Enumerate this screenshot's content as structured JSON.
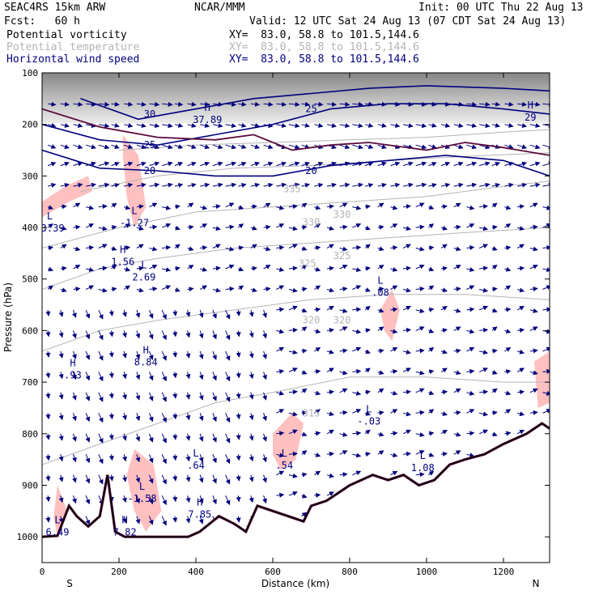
{
  "header": {
    "model": "SEAC4RS 15km ARW",
    "forecast": "Fcst:   60 h",
    "center": "NCAR/MMM",
    "init": "Init: 00 UTC Thu 22 Aug 13",
    "valid": "Valid: 12 UTC Sat 24 Aug 13 (07 CDT Sat 24 Aug 13)",
    "fields": [
      {
        "name": "Potential vorticity",
        "xy": "XY=  83.0, 58.8 to 101.5,144.6",
        "color": "#000000"
      },
      {
        "name": "Potential temperature",
        "xy": "XY=  83.0, 58.8 to 101.5,144.6",
        "color": "#b4b4b4"
      },
      {
        "name": "Horizontal wind speed",
        "xy": "XY=  83.0, 58.8 to 101.5,144.6",
        "color": "#00007f"
      }
    ]
  },
  "chart_data": {
    "type": "cross-section",
    "xlabel": "Distance (km)",
    "ylabel": "Pressure (hPa)",
    "xlim": [
      0,
      1320
    ],
    "ylim": [
      1050,
      100
    ],
    "x_ticks": [
      "0",
      "200",
      "400",
      "600",
      "800",
      "1000",
      "1200"
    ],
    "y_ticks": [
      "100",
      "200",
      "300",
      "400",
      "500",
      "600",
      "700",
      "800",
      "900",
      "1000"
    ],
    "endpoints": {
      "left": "S",
      "right": "N"
    },
    "colors": {
      "pv": "#5a0a3c",
      "theta": "#b4b4b4",
      "wind": "#00007f",
      "pv_fill": "#ffc0c0",
      "terrain": "#000000"
    },
    "theta_contours": [
      {
        "value": "315",
        "points": [
          [
            0,
            860
          ],
          [
            150,
            820
          ],
          [
            300,
            780
          ],
          [
            450,
            740
          ],
          [
            600,
            720
          ],
          [
            800,
            690
          ],
          [
            1000,
            690
          ],
          [
            1200,
            700
          ],
          [
            1320,
            700
          ]
        ]
      },
      {
        "value": "320",
        "points": [
          [
            0,
            640
          ],
          [
            150,
            600
          ],
          [
            300,
            580
          ],
          [
            500,
            560
          ],
          [
            700,
            540
          ],
          [
            900,
            530
          ],
          [
            1100,
            530
          ],
          [
            1320,
            540
          ]
        ]
      },
      {
        "value": "325",
        "points": [
          [
            0,
            520
          ],
          [
            150,
            480
          ],
          [
            300,
            460
          ],
          [
            500,
            440
          ],
          [
            700,
            430
          ],
          [
            900,
            420
          ],
          [
            1100,
            410
          ],
          [
            1320,
            400
          ]
        ]
      },
      {
        "value": "330",
        "points": [
          [
            0,
            440
          ],
          [
            200,
            400
          ],
          [
            400,
            370
          ],
          [
            600,
            360
          ],
          [
            800,
            350
          ],
          [
            1000,
            340
          ],
          [
            1200,
            320
          ],
          [
            1320,
            310
          ]
        ]
      },
      {
        "value": "335",
        "points": [
          [
            100,
            330
          ],
          [
            300,
            300
          ],
          [
            500,
            285
          ],
          [
            700,
            280
          ],
          [
            900,
            270
          ],
          [
            1100,
            262
          ],
          [
            1320,
            255
          ]
        ]
      },
      {
        "value": "340",
        "points": [
          [
            200,
            250
          ],
          [
            400,
            240
          ],
          [
            600,
            235
          ],
          [
            800,
            230
          ],
          [
            1000,
            225
          ],
          [
            1200,
            215
          ],
          [
            1320,
            210
          ]
        ]
      }
    ],
    "wind_isotachs": [
      {
        "value": "20",
        "points": [
          [
            0,
            250
          ],
          [
            150,
            285
          ],
          [
            300,
            290
          ],
          [
            450,
            300
          ],
          [
            600,
            300
          ],
          [
            750,
            280
          ],
          [
            900,
            270
          ],
          [
            1050,
            260
          ],
          [
            1200,
            270
          ],
          [
            1320,
            300
          ]
        ]
      },
      {
        "value": "25",
        "points": [
          [
            0,
            200
          ],
          [
            150,
            230
          ],
          [
            300,
            240
          ],
          [
            450,
            220
          ],
          [
            600,
            200
          ],
          [
            750,
            170
          ],
          [
            900,
            160
          ],
          [
            1050,
            160
          ],
          [
            1200,
            170
          ],
          [
            1320,
            180
          ]
        ]
      },
      {
        "value": "30",
        "points": [
          [
            100,
            150
          ],
          [
            250,
            190
          ],
          [
            400,
            170
          ],
          [
            550,
            150
          ],
          [
            700,
            140
          ],
          [
            850,
            130
          ],
          [
            1000,
            125
          ],
          [
            1200,
            130
          ],
          [
            1320,
            135
          ]
        ]
      }
    ],
    "pv_contour": {
      "points": [
        [
          0,
          170
        ],
        [
          150,
          205
        ],
        [
          300,
          225
        ],
        [
          450,
          230
        ],
        [
          550,
          220
        ],
        [
          650,
          250
        ],
        [
          750,
          240
        ],
        [
          850,
          235
        ],
        [
          1000,
          250
        ],
        [
          1100,
          235
        ],
        [
          1200,
          245
        ],
        [
          1320,
          260
        ]
      ]
    },
    "terrain_profile": [
      [
        0,
        1000
      ],
      [
        40,
        998
      ],
      [
        70,
        940
      ],
      [
        90,
        960
      ],
      [
        120,
        980
      ],
      [
        150,
        960
      ],
      [
        170,
        880
      ],
      [
        190,
        990
      ],
      [
        215,
        1000
      ],
      [
        380,
        1000
      ],
      [
        410,
        990
      ],
      [
        460,
        960
      ],
      [
        500,
        975
      ],
      [
        530,
        990
      ],
      [
        560,
        940
      ],
      [
        600,
        950
      ],
      [
        640,
        960
      ],
      [
        680,
        970
      ],
      [
        700,
        940
      ],
      [
        740,
        930
      ],
      [
        800,
        900
      ],
      [
        860,
        880
      ],
      [
        900,
        890
      ],
      [
        940,
        880
      ],
      [
        980,
        900
      ],
      [
        1020,
        890
      ],
      [
        1060,
        860
      ],
      [
        1100,
        850
      ],
      [
        1150,
        840
      ],
      [
        1200,
        820
      ],
      [
        1260,
        800
      ],
      [
        1300,
        780
      ],
      [
        1320,
        790
      ]
    ],
    "pv_fill_regions": [
      [
        [
          0,
          350
        ],
        [
          60,
          320
        ],
        [
          120,
          300
        ],
        [
          130,
          330
        ],
        [
          70,
          350
        ],
        [
          0,
          380
        ]
      ],
      [
        [
          210,
          220
        ],
        [
          250,
          260
        ],
        [
          270,
          360
        ],
        [
          240,
          400
        ],
        [
          220,
          340
        ],
        [
          210,
          260
        ]
      ],
      [
        [
          240,
          830
        ],
        [
          290,
          860
        ],
        [
          310,
          950
        ],
        [
          270,
          990
        ],
        [
          240,
          950
        ],
        [
          220,
          880
        ]
      ],
      [
        [
          40,
          900
        ],
        [
          70,
          960
        ],
        [
          70,
          1000
        ],
        [
          40,
          1000
        ],
        [
          30,
          960
        ]
      ],
      [
        [
          600,
          800
        ],
        [
          650,
          760
        ],
        [
          680,
          780
        ],
        [
          660,
          850
        ],
        [
          620,
          870
        ],
        [
          600,
          840
        ]
      ],
      [
        [
          1280,
          660
        ],
        [
          1320,
          640
        ],
        [
          1320,
          740
        ],
        [
          1290,
          750
        ]
      ],
      [
        [
          880,
          560
        ],
        [
          910,
          520
        ],
        [
          930,
          560
        ],
        [
          910,
          620
        ],
        [
          890,
          600
        ]
      ]
    ],
    "extrema": [
      {
        "type": "L",
        "value": "-3.39",
        "x": 20,
        "p": 395
      },
      {
        "type": "L",
        "value": "-1.27",
        "x": 240,
        "p": 385
      },
      {
        "type": "H",
        "value": "1.56",
        "x": 210,
        "p": 460
      },
      {
        "type": "L",
        "value": "2.69",
        "x": 265,
        "p": 490
      },
      {
        "type": "H",
        "value": ".93",
        "x": 80,
        "p": 680
      },
      {
        "type": "H",
        "value": "8.84",
        "x": 270,
        "p": 655
      },
      {
        "type": "L",
        "value": ".08",
        "x": 880,
        "p": 520
      },
      {
        "type": "L",
        "value": "-.03",
        "x": 850,
        "p": 770
      },
      {
        "type": "L",
        "value": ".64",
        "x": 400,
        "p": 855
      },
      {
        "type": "L",
        "value": ".54",
        "x": 630,
        "p": 855
      },
      {
        "type": "L",
        "value": "-1.58",
        "x": 260,
        "p": 920
      },
      {
        "type": "H",
        "value": "7.85",
        "x": 410,
        "p": 950
      },
      {
        "type": "H",
        "value": "7.82",
        "x": 215,
        "p": 985
      },
      {
        "type": "L",
        "value": "6.49",
        "x": 40,
        "p": 985
      },
      {
        "type": "H",
        "value": "37.89",
        "x": 430,
        "p": 185
      },
      {
        "type": "L",
        "value": "1.08",
        "x": 990,
        "p": 860
      },
      {
        "type": "H",
        "value": "29",
        "x": 1270,
        "p": 180
      }
    ],
    "contour_labels": [
      {
        "text": "30",
        "x": 280,
        "p": 180,
        "color": "wind"
      },
      {
        "text": "25",
        "x": 280,
        "p": 240,
        "color": "wind"
      },
      {
        "text": "20",
        "x": 280,
        "p": 290,
        "color": "wind"
      },
      {
        "text": "25",
        "x": 700,
        "p": 170,
        "color": "wind"
      },
      {
        "text": "20",
        "x": 700,
        "p": 290,
        "color": "wind"
      },
      {
        "text": "335",
        "x": 650,
        "p": 325,
        "color": "theta"
      },
      {
        "text": "330",
        "x": 700,
        "p": 390,
        "color": "theta"
      },
      {
        "text": "330",
        "x": 780,
        "p": 375,
        "color": "theta"
      },
      {
        "text": "325",
        "x": 690,
        "p": 470,
        "color": "theta"
      },
      {
        "text": "325",
        "x": 780,
        "p": 455,
        "color": "theta"
      },
      {
        "text": "320",
        "x": 700,
        "p": 580,
        "color": "theta"
      },
      {
        "text": "320",
        "x": 780,
        "p": 580,
        "color": "theta"
      },
      {
        "text": "315",
        "x": 700,
        "p": 760,
        "color": "theta"
      }
    ]
  }
}
